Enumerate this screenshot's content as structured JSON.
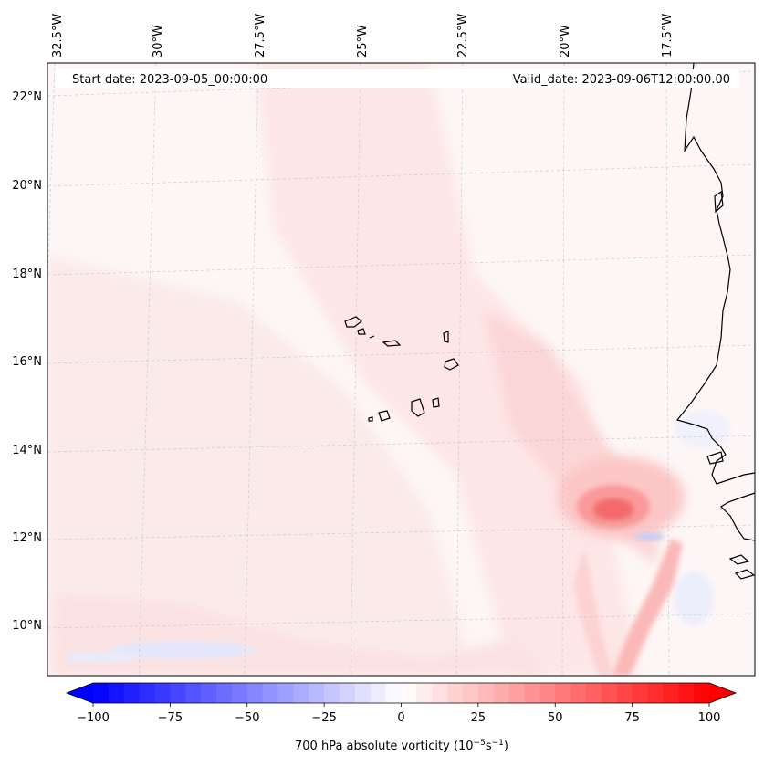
{
  "header": {
    "start_date": "Start date: 2023-09-05_00:00:00",
    "valid_date": "Valid_date: 2023-09-06T12:00:00.00"
  },
  "map": {
    "lon_labels": [
      "32.5°W",
      "30°W",
      "27.5°W",
      "25°W",
      "22.5°W",
      "20°W",
      "17.5°W"
    ],
    "lat_labels": [
      "22°N",
      "20°N",
      "18°N",
      "16°N",
      "14°N",
      "12°N",
      "10°N"
    ],
    "lon_range": [
      -33.0,
      -15.0
    ],
    "lat_range": [
      8.8,
      22.8
    ],
    "gridlines": true,
    "field": "700 hPa absolute vorticity"
  },
  "colorbar": {
    "tick_labels": [
      "−100",
      "−75",
      "−50",
      "−25",
      "0",
      "25",
      "50",
      "75",
      "100"
    ],
    "tick_values": [
      -100,
      -75,
      -50,
      -25,
      0,
      25,
      50,
      75,
      100
    ],
    "range": [
      -100,
      100
    ],
    "step": 5,
    "label_main": "700 hPa absolute vorticity (10",
    "label_exp1": "−5",
    "label_mid": "s",
    "label_exp2": "−1",
    "label_end": ")",
    "colors": {
      "low": "#0000ff",
      "mid": "#ffffff",
      "high": "#ff0000"
    },
    "extend": "both"
  }
}
